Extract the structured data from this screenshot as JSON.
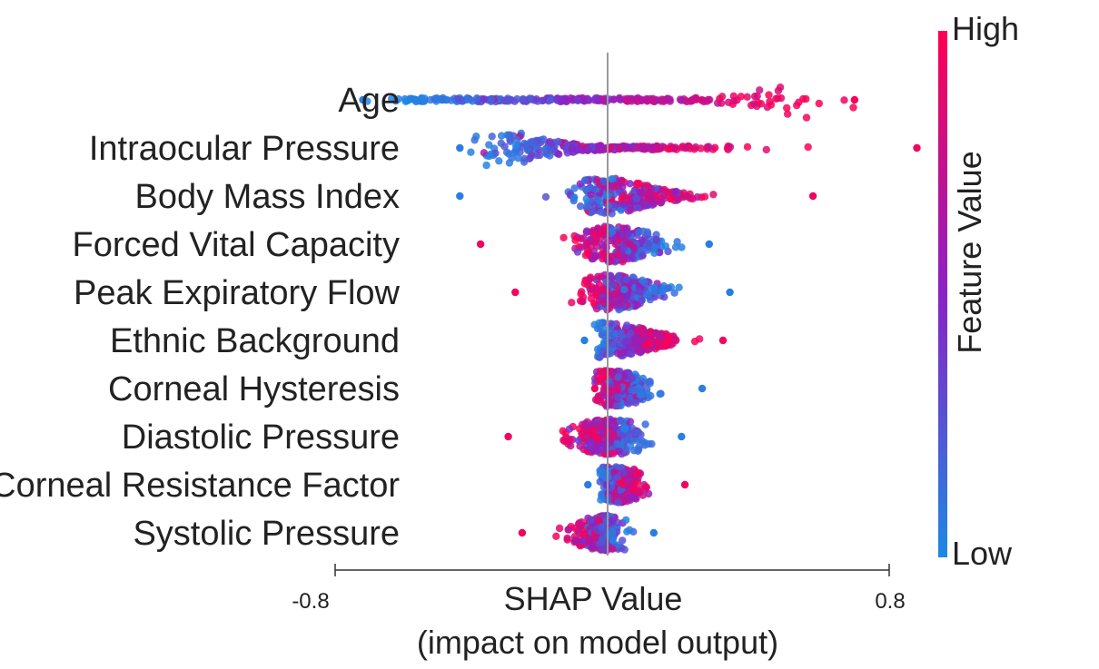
{
  "chart_data": {
    "type": "scatter",
    "subtype": "shap-beeswarm",
    "title": "",
    "xlabel_line1": "SHAP Value",
    "xlabel_line2": "(impact on model output)",
    "ylabel": "",
    "xlim": [
      -0.8,
      0.8
    ],
    "x_ticks": [
      {
        "value": -0.8,
        "label": "-0.8"
      },
      {
        "value": 0.8,
        "label": "0.8"
      }
    ],
    "zero_line": true,
    "grid": false,
    "colorbar": {
      "title": "Feature Value",
      "high_label": "High",
      "low_label": "Low",
      "high_color": "#ff0052",
      "mid_color": "#8a22c6",
      "low_color": "#1e88e5",
      "placement": "right"
    },
    "features": [
      {
        "name": "Age",
        "min": -0.72,
        "max": 0.7,
        "low_center": -0.58,
        "high_center": 0.45,
        "low_spread": 0.14,
        "high_spread": 0.22,
        "density_peak": 0.55
      },
      {
        "name": "Intraocular Pressure",
        "min": -0.44,
        "max": 0.88,
        "low_center": -0.33,
        "high_center": 0.22,
        "low_spread": 0.1,
        "high_spread": 0.25,
        "density_peak": -0.33
      },
      {
        "name": "Body Mass Index",
        "min": -0.44,
        "max": 0.58,
        "low_center": -0.05,
        "high_center": 0.12,
        "low_spread": 0.1,
        "high_spread": 0.15,
        "density_peak": -0.02
      },
      {
        "name": "Forced Vital Capacity",
        "min": -0.38,
        "max": 0.28,
        "low_center": 0.1,
        "high_center": -0.05,
        "low_spread": 0.1,
        "high_spread": 0.08,
        "density_peak": 0.0
      },
      {
        "name": "Peak Expiratory Flow",
        "min": -0.28,
        "max": 0.34,
        "low_center": 0.1,
        "high_center": -0.04,
        "low_spread": 0.1,
        "high_spread": 0.07,
        "density_peak": -0.01
      },
      {
        "name": "Ethnic Background",
        "min": -0.08,
        "max": 0.32,
        "low_center": -0.03,
        "high_center": 0.15,
        "low_spread": 0.02,
        "high_spread": 0.09,
        "density_peak": -0.02
      },
      {
        "name": "Corneal Hysteresis",
        "min": -0.05,
        "max": 0.26,
        "low_center": 0.07,
        "high_center": -0.02,
        "low_spread": 0.07,
        "high_spread": 0.03,
        "density_peak": -0.01
      },
      {
        "name": "Diastolic Pressure",
        "min": -0.3,
        "max": 0.2,
        "low_center": 0.05,
        "high_center": -0.07,
        "low_spread": 0.06,
        "high_spread": 0.08,
        "density_peak": 0.0
      },
      {
        "name": "Corneal Resistance Factor",
        "min": -0.07,
        "max": 0.21,
        "low_center": -0.02,
        "high_center": 0.06,
        "low_spread": 0.02,
        "high_spread": 0.06,
        "density_peak": 0.0
      },
      {
        "name": "Systolic Pressure",
        "min": -0.26,
        "max": 0.12,
        "low_center": 0.0,
        "high_center": -0.08,
        "low_spread": 0.04,
        "high_spread": 0.06,
        "density_peak": 0.0
      }
    ]
  }
}
